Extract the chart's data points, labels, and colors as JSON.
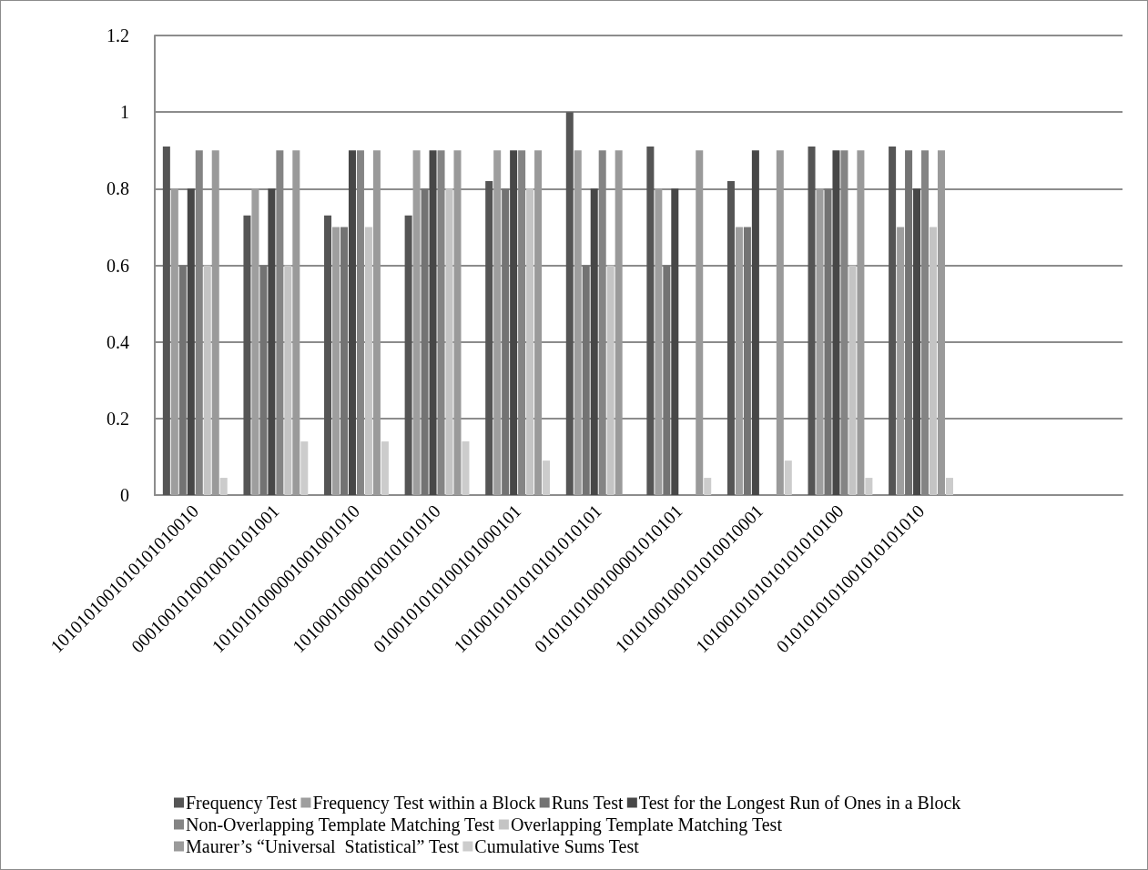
{
  "chart_data": {
    "type": "bar",
    "categories": [
      "1010101001010101010010",
      "0001001010010010101001",
      "1010101000001001001010",
      "1010001000010010101010",
      "0100101010100101000101",
      "1010010101010101010101",
      "0101010100100001010101",
      "1010100100101010010001",
      "1010010101010101010100",
      "0101010101001010101010",
      null,
      null
    ],
    "series": [
      {
        "name": "Frequency Test",
        "color": "#555555",
        "values": [
          0.91,
          0.73,
          0.73,
          0.73,
          0.82,
          1.0,
          0.91,
          0.82,
          0.91,
          0.91,
          null,
          null
        ]
      },
      {
        "name": "Frequency Test within a Block",
        "color": "#9e9e9e",
        "values": [
          0.8,
          0.8,
          0.7,
          0.9,
          0.9,
          0.9,
          0.8,
          0.7,
          0.8,
          0.7,
          null,
          null
        ]
      },
      {
        "name": "Runs Test",
        "color": "#737373",
        "values": [
          0.6,
          0.6,
          0.7,
          0.8,
          0.8,
          0.6,
          0.6,
          0.7,
          0.8,
          0.9,
          null,
          null
        ]
      },
      {
        "name": "Test for the Longest Run of Ones in a Block",
        "color": "#474747",
        "values": [
          0.8,
          0.8,
          0.9,
          0.9,
          0.9,
          0.8,
          0.8,
          0.9,
          0.9,
          0.8,
          null,
          null
        ]
      },
      {
        "name": "Non-Overlapping Template Matching Test",
        "color": "#848484",
        "values": [
          0.9,
          0.9,
          0.9,
          0.9,
          0.9,
          0.9,
          0,
          0,
          0.9,
          0.9,
          null,
          null
        ]
      },
      {
        "name": "Overlapping Template Matching Test",
        "color": "#c4c4c4",
        "values": [
          0.6,
          0.6,
          0.7,
          0.8,
          0.8,
          0.6,
          0,
          0,
          0.6,
          0.7,
          null,
          null
        ]
      },
      {
        "name": "Maurer’s “Universal  Statistical” Test",
        "color": "#9a9a9a",
        "values": [
          0.9,
          0.9,
          0.9,
          0.9,
          0.9,
          0.9,
          0.9,
          0.9,
          0.9,
          0.9,
          null,
          null
        ]
      },
      {
        "name": "Cumulative Sums Test",
        "color": "#cccccc",
        "values": [
          0.045,
          0.14,
          0.14,
          0.14,
          0.09,
          0,
          0.045,
          0.09,
          0.045,
          0.045,
          null,
          null
        ]
      }
    ],
    "ylim": [
      0,
      1.2
    ],
    "yticks": [
      0,
      0.2,
      0.4,
      0.6,
      0.8,
      1,
      1.2
    ],
    "grid": "y",
    "legend": "bottom"
  }
}
